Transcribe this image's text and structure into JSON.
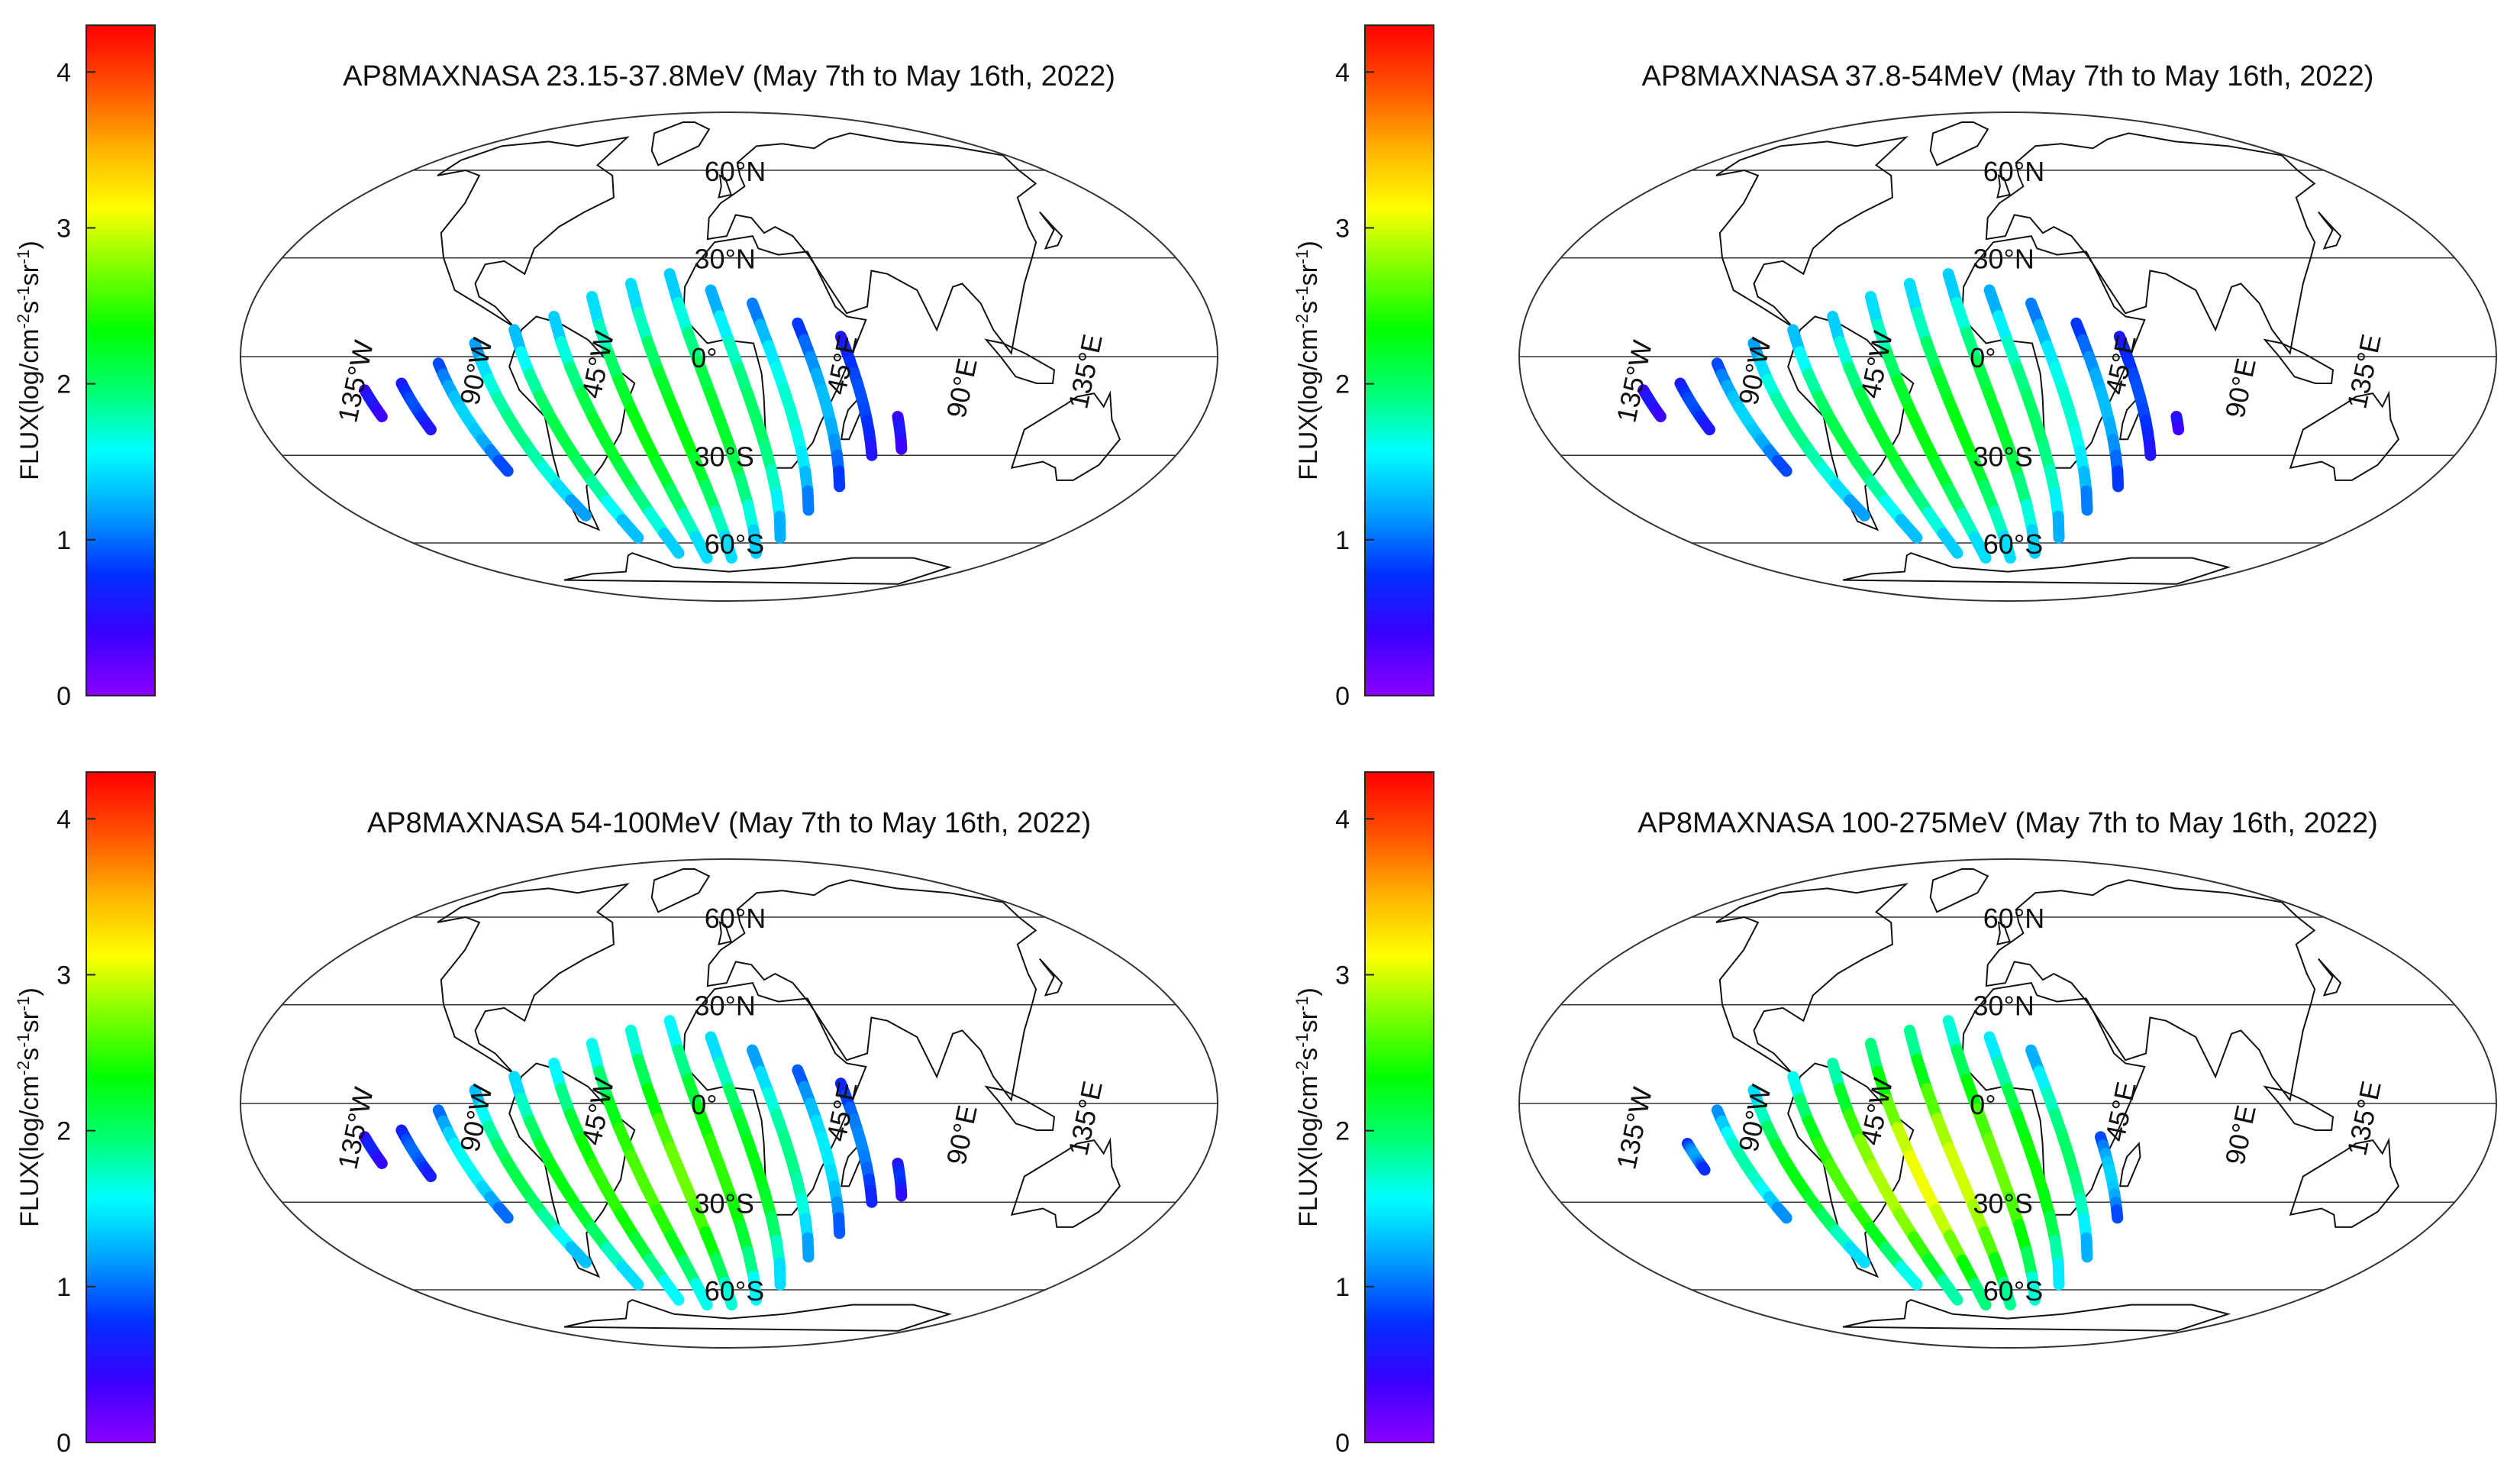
{
  "figure": {
    "colorbar": {
      "label": "FLUX(log/cm-2s-1sr-1)",
      "label_parts": {
        "base": "FLUX(log/cm",
        "e1": "-2",
        "mid": "s",
        "e2": "-1",
        "mid2": "sr",
        "e3": "-1",
        "end": ")"
      },
      "ticks": [
        "0",
        "1",
        "2",
        "3",
        "4"
      ],
      "range": [
        0,
        4.3
      ],
      "stops": [
        "#8a00ff",
        "#3a00ff",
        "#0030ff",
        "#00a0ff",
        "#00ffff",
        "#00ff70",
        "#00ff00",
        "#7cff00",
        "#ffff00",
        "#ffb000",
        "#ff5000",
        "#ff0000"
      ]
    },
    "map_labels": {
      "lat": [
        "60°N",
        "30°N",
        "0°",
        "30°S",
        "60°S"
      ],
      "lon": [
        "135°W",
        "90°W",
        "45°W",
        "45°E",
        "90°E",
        "135°E"
      ]
    },
    "panels": [
      {
        "title": "AP8MAXNASA 23.15-37.8MeV (May 7th to May 16th, 2022)",
        "chart_data": {
          "type": "heatmap",
          "quantity": "FLUX",
          "unit": "log/cm-2s-1sr-1",
          "clim": [
            0,
            4.3
          ],
          "approx_flux_range": [
            0.5,
            2.7
          ],
          "tracks": 14
        }
      },
      {
        "title": "AP8MAXNASA 37.8-54MeV (May 7th to May 16th, 2022)",
        "chart_data": {
          "type": "heatmap",
          "quantity": "FLUX",
          "unit": "log/cm-2s-1sr-1",
          "clim": [
            0,
            4.3
          ],
          "approx_flux_range": [
            0.5,
            2.6
          ],
          "tracks": 14
        }
      },
      {
        "title": "AP8MAXNASA 54-100MeV (May 7th to May 16th, 2022)",
        "chart_data": {
          "type": "heatmap",
          "quantity": "FLUX",
          "unit": "log/cm-2s-1sr-1",
          "clim": [
            0,
            4.3
          ],
          "approx_flux_range": [
            0.6,
            2.9
          ],
          "tracks": 14
        }
      },
      {
        "title": "AP8MAXNASA 100-275MeV (May 7th to May 16th, 2022)",
        "chart_data": {
          "type": "heatmap",
          "quantity": "FLUX",
          "unit": "log/cm-2s-1sr-1",
          "clim": [
            0,
            4.3
          ],
          "approx_flux_range": [
            0.9,
            3.2
          ],
          "tracks": 11
        }
      }
    ]
  }
}
